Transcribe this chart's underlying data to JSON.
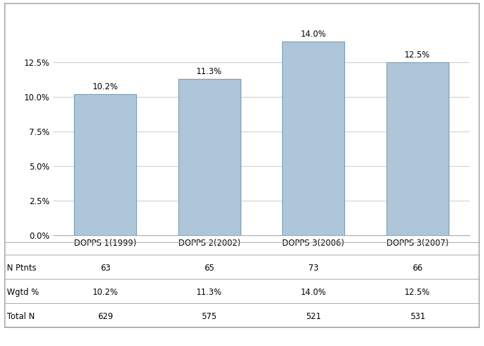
{
  "categories": [
    "DOPPS 1(1999)",
    "DOPPS 2(2002)",
    "DOPPS 3(2006)",
    "DOPPS 3(2007)"
  ],
  "values": [
    10.2,
    11.3,
    14.0,
    12.5
  ],
  "bar_color": "#aec6d8",
  "bar_edge_color": "#7a9db8",
  "ylim": [
    0,
    15.5
  ],
  "yticks": [
    0.0,
    2.5,
    5.0,
    7.5,
    10.0,
    12.5
  ],
  "ytick_labels": [
    "0.0%",
    "2.5%",
    "5.0%",
    "7.5%",
    "10.0%",
    "12.5%"
  ],
  "value_labels": [
    "10.2%",
    "11.3%",
    "14.0%",
    "12.5%"
  ],
  "table_rows": {
    "N Ptnts": [
      "63",
      "65",
      "73",
      "66"
    ],
    "Wgtd %": [
      "10.2%",
      "11.3%",
      "14.0%",
      "12.5%"
    ],
    "Total N": [
      "629",
      "575",
      "521",
      "531"
    ]
  },
  "table_row_order": [
    "N Ptnts",
    "Wgtd %",
    "Total N"
  ],
  "grid_color": "#d0d0d0",
  "background_color": "#ffffff",
  "border_color": "#aaaaaa",
  "font_size_ticks": 8.5,
  "font_size_table": 8.5,
  "font_size_bar_labels": 8.5
}
